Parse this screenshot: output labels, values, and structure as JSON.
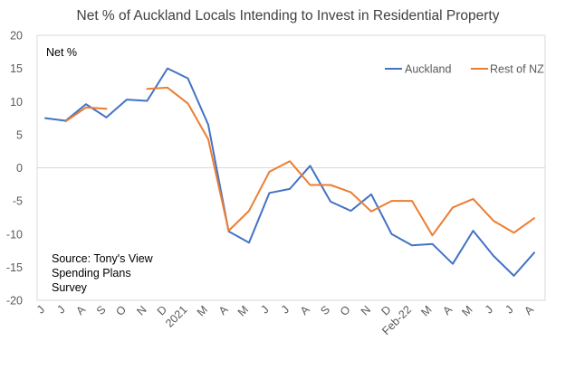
{
  "chart_data": {
    "type": "line",
    "title": "Net % of Auckland Locals Intending to Invest in Residential Property",
    "ylabel": "Net %",
    "xlabel": "",
    "ylim": [
      -20,
      20
    ],
    "yticks": [
      20,
      15,
      10,
      5,
      0,
      -5,
      -10,
      -15,
      -20
    ],
    "categories": [
      "J",
      "J",
      "A",
      "S",
      "O",
      "N",
      "D",
      "2021",
      "M",
      "A",
      "M",
      "J",
      "J",
      "A",
      "S",
      "O",
      "N",
      "D",
      "Feb-22",
      "M",
      "A",
      "M",
      "J",
      "J",
      "A"
    ],
    "legend_position": "top-right",
    "grid": "none",
    "annotation": [
      "Source: Tony's View",
      "Spending Plans",
      "Survey"
    ],
    "series": [
      {
        "name": "Auckland",
        "color": "#4472C4",
        "values": [
          7.5,
          7.1,
          9.6,
          7.6,
          10.3,
          10.1,
          15.0,
          13.5,
          6.5,
          -9.6,
          -11.3,
          -3.8,
          -3.2,
          0.3,
          -5.1,
          -6.5,
          -4.0,
          -10.0,
          -11.7,
          -11.5,
          -14.5,
          -9.5,
          -13.3,
          -16.3,
          -12.8
        ]
      },
      {
        "name": "Rest of NZ",
        "color": "#ED7D31",
        "values": [
          null,
          7.0,
          9.1,
          8.9,
          null,
          11.9,
          12.1,
          9.7,
          4.3,
          -9.5,
          -6.5,
          -0.6,
          1.0,
          -2.6,
          -2.6,
          -3.7,
          -6.6,
          -5.0,
          -5.0,
          -10.2,
          -6.0,
          -4.7,
          -8.0,
          -9.8,
          -7.6
        ]
      }
    ]
  }
}
